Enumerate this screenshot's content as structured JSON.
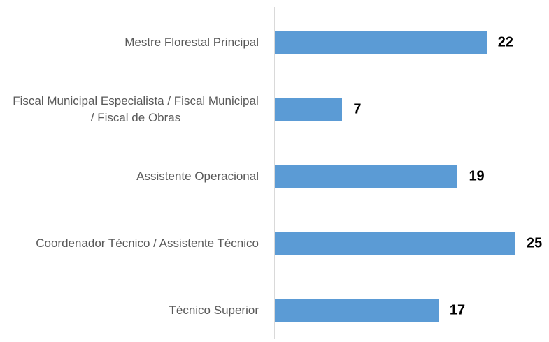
{
  "chart_data": {
    "type": "bar",
    "orientation": "horizontal",
    "categories": [
      "Mestre Florestal Principal",
      "Fiscal Municipal Especialista / Fiscal Municipal / Fiscal de Obras",
      "Assistente Operacional",
      "Coordenador Técnico / Assistente Técnico",
      "Técnico Superior"
    ],
    "values": [
      22,
      7,
      19,
      25,
      17
    ],
    "color": "#5b9bd5"
  }
}
